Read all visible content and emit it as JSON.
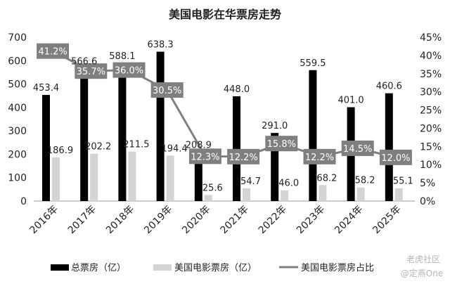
{
  "chart_data": {
    "type": "bar",
    "title": "美国电影在华票房走势",
    "categories": [
      "2016年",
      "2017年",
      "2018年",
      "2019年",
      "2020年",
      "2021年",
      "2022年",
      "2023年",
      "2024年",
      "2025年"
    ],
    "series": [
      {
        "name": "总票房（亿）",
        "kind": "bar",
        "axis": "left",
        "color": "#000000",
        "values": [
          453.4,
          566.6,
          588.1,
          638.3,
          208.9,
          448.0,
          291.0,
          559.5,
          401.0,
          460.6
        ],
        "labels": [
          "453.4",
          "566.6",
          "588.1",
          "638.3",
          "208.9",
          "448.0",
          "291.0",
          "559.5",
          "401.0",
          "460.6"
        ]
      },
      {
        "name": "美国电影票房（亿）",
        "kind": "bar",
        "axis": "left",
        "color": "#d4d4d4",
        "values": [
          186.9,
          202.2,
          211.5,
          194.4,
          25.6,
          54.7,
          46.0,
          68.2,
          58.2,
          55.1
        ],
        "labels": [
          "186.9",
          "202.2",
          "211.5",
          "194.4",
          "25.6",
          "54.7",
          "46.0",
          "68.2",
          "58.2",
          "55.1"
        ]
      },
      {
        "name": "美国电影票房占比",
        "kind": "line",
        "axis": "right",
        "color": "#7f7f7f",
        "values": [
          41.2,
          35.7,
          36.0,
          30.5,
          12.3,
          12.2,
          15.8,
          12.2,
          14.5,
          12.0
        ],
        "labels": [
          "41.2%",
          "35.7%",
          "36.0%",
          "30.5%",
          "12.3%",
          "12.2%",
          "15.8%",
          "12.2%",
          "14.5%",
          "12.0%"
        ]
      }
    ],
    "yleft": {
      "ylim": [
        0,
        700
      ],
      "ticks": [
        "0",
        "100",
        "200",
        "300",
        "400",
        "500",
        "600",
        "700"
      ]
    },
    "yright": {
      "ylim": [
        0,
        45
      ],
      "ticks": [
        "0%",
        "5%",
        "10%",
        "15%",
        "20%",
        "25%",
        "30%",
        "35%",
        "40%",
        "45%"
      ]
    },
    "grid": false,
    "legend_position": "bottom"
  },
  "watermark": {
    "line1": "老虎社区",
    "line2": "@定燕One"
  }
}
